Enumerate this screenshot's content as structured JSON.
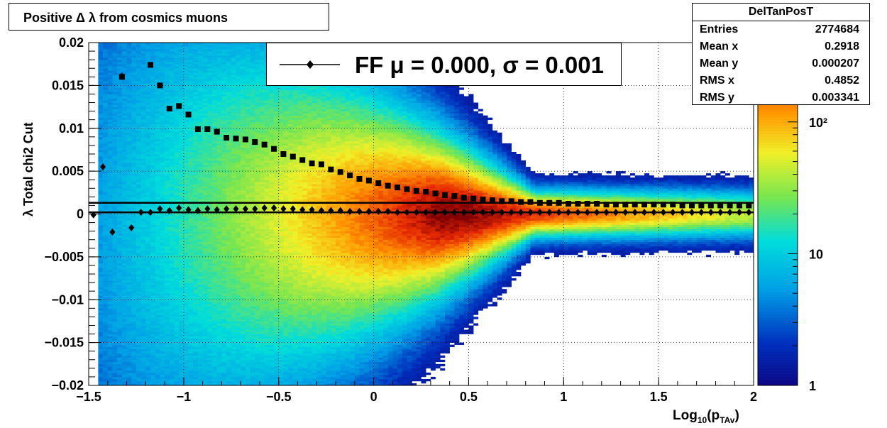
{
  "title": "Positive Δ λ from cosmics muons",
  "stats": {
    "name": "DelTanPosT",
    "rows": [
      {
        "label": "Entries",
        "value": "2774684"
      },
      {
        "label": "Mean x",
        "value": "0.2918"
      },
      {
        "label": "Mean y",
        "value": "0.000207"
      },
      {
        "label": "RMS x",
        "value": "0.4852"
      },
      {
        "label": "RMS y",
        "value": "0.003341"
      }
    ]
  },
  "legend": {
    "text": "FF μ =  0.000, σ =   0.001"
  },
  "chart_data": {
    "type": "heatmap",
    "xlabel_main": "Log",
    "xlabel_sub": "10",
    "xlabel_paren_open": "(p",
    "xlabel_sub2": "TAv",
    "xlabel_paren_close": ")",
    "ylabel": "λ  Total chi2 Cut",
    "xlim": [
      -1.5,
      2
    ],
    "ylim": [
      -0.02,
      0.02
    ],
    "x_ticks": [
      "−1.5",
      "−1",
      "−0.5",
      "0",
      "0.5",
      "1",
      "1.5",
      "2"
    ],
    "x_tick_values": [
      -1.5,
      -1,
      -0.5,
      0,
      0.5,
      1,
      1.5,
      2
    ],
    "y_ticks": [
      "0.02",
      "0.015",
      "0.01",
      "0.005",
      "0",
      "−0.005",
      "−0.01",
      "−0.015",
      "−0.02"
    ],
    "y_tick_values": [
      0.02,
      0.015,
      0.01,
      0.005,
      0,
      -0.005,
      -0.01,
      -0.015,
      -0.02
    ],
    "color_scale": "log",
    "color_ticks": [
      "1",
      "10",
      "10²"
    ],
    "color_tick_values": [
      1,
      10,
      100
    ],
    "grid": true,
    "series": [
      {
        "marker": "square",
        "x": [
          -1.325,
          -1.175,
          -1.125,
          -1.075,
          -1.025,
          -0.975,
          -0.925,
          -0.875,
          -0.825,
          -0.775,
          -0.725,
          -0.675,
          -0.625,
          -0.575,
          -0.525,
          -0.475,
          -0.425,
          -0.375,
          -0.325,
          -0.275,
          -0.225,
          -0.175,
          -0.125,
          -0.075,
          -0.025,
          0.025,
          0.075,
          0.125,
          0.175,
          0.225,
          0.275,
          0.325,
          0.375,
          0.425,
          0.475,
          0.525,
          0.575,
          0.625,
          0.675,
          0.725,
          0.775,
          0.825,
          0.875,
          0.925,
          0.975,
          1.025,
          1.075,
          1.125,
          1.175,
          1.225,
          1.275,
          1.325,
          1.375,
          1.425,
          1.475,
          1.525,
          1.575,
          1.625,
          1.675,
          1.725,
          1.775,
          1.825,
          1.875,
          1.925,
          1.975
        ],
        "y": [
          0.016,
          0.0174,
          0.015,
          0.0123,
          0.0126,
          0.0116,
          0.0099,
          0.0099,
          0.0096,
          0.0089,
          0.0088,
          0.0087,
          0.0084,
          0.0081,
          0.0076,
          0.007,
          0.0067,
          0.0063,
          0.0059,
          0.0058,
          0.0052,
          0.0049,
          0.0045,
          0.0041,
          0.0039,
          0.0036,
          0.0033,
          0.0031,
          0.0029,
          0.0027,
          0.0026,
          0.0024,
          0.0022,
          0.0021,
          0.0019,
          0.0018,
          0.0017,
          0.0016,
          0.0015,
          0.0015,
          0.0014,
          0.0014,
          0.0013,
          0.0013,
          0.0013,
          0.0012,
          0.0012,
          0.0012,
          0.0012,
          0.0011,
          0.0011,
          0.0011,
          0.0011,
          0.0011,
          0.0011,
          0.0011,
          0.0011,
          0.001,
          0.001,
          0.001,
          0.001,
          0.001,
          0.001,
          0.001,
          0.001
        ]
      },
      {
        "marker": "diamond",
        "x": [
          -1.475,
          -1.425,
          -1.375,
          -1.325,
          -1.275,
          -1.225,
          -1.175,
          -1.125,
          -1.075,
          -1.025,
          -0.975,
          -0.925,
          -0.875,
          -0.825,
          -0.775,
          -0.725,
          -0.675,
          -0.625,
          -0.575,
          -0.525,
          -0.475,
          -0.425,
          -0.375,
          -0.325,
          -0.275,
          -0.225,
          -0.175,
          -0.125,
          -0.075,
          -0.025,
          0.025,
          0.075,
          0.125,
          0.175,
          0.225,
          0.275,
          0.325,
          0.375,
          0.425,
          0.475,
          0.525,
          0.575,
          0.625,
          0.675,
          0.725,
          0.775,
          0.825,
          0.875,
          0.925,
          0.975,
          1.025,
          1.075,
          1.125,
          1.175,
          1.225,
          1.275,
          1.325,
          1.375,
          1.425,
          1.475,
          1.525,
          1.575,
          1.625,
          1.675,
          1.725,
          1.775,
          1.825,
          1.875,
          1.925,
          1.975
        ],
        "y": [
          -0.0001,
          0.0055,
          -0.0021,
          0.0161,
          -0.0016,
          0.0002,
          0.0002,
          0.0006,
          0.0004,
          0.0007,
          0.0005,
          0.0004,
          0.0006,
          0.0005,
          0.0006,
          0.0006,
          0.0006,
          0.0006,
          0.0007,
          0.0007,
          0.0006,
          0.0006,
          0.0005,
          0.0005,
          0.0004,
          0.0004,
          0.0004,
          0.0003,
          0.0003,
          0.0003,
          0.0003,
          0.0003,
          0.0002,
          0.0002,
          0.0002,
          0.0002,
          0.0002,
          0.0002,
          0.0002,
          0.0002,
          0.0002,
          0.0002,
          0.0002,
          0.0002,
          0.0002,
          0.0002,
          0.0002,
          0.0002,
          0.0002,
          0.0002,
          0.0002,
          0.0002,
          0.0002,
          0.0002,
          0.0002,
          0.0002,
          0.0002,
          0.0002,
          0.0002,
          0.0002,
          0.0002,
          0.0002,
          0.0002,
          0.0002,
          0.0002,
          0.0002,
          0.0002,
          0.0002,
          0.0002,
          0.0002
        ]
      }
    ],
    "fit_lines": [
      {
        "y": 0.0013
      },
      {
        "y": 0.0002
      }
    ]
  }
}
